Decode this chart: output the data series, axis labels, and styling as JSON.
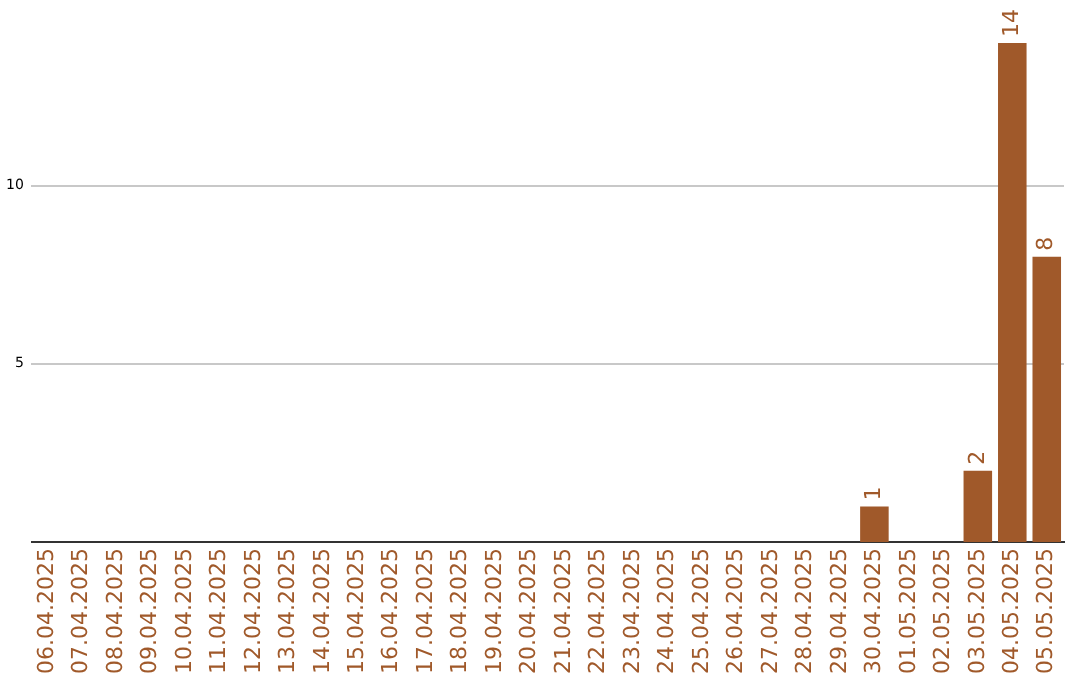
{
  "chart_data": {
    "type": "bar",
    "categories": [
      "06.04.2025",
      "07.04.2025",
      "08.04.2025",
      "09.04.2025",
      "10.04.2025",
      "11.04.2025",
      "12.04.2025",
      "13.04.2025",
      "14.04.2025",
      "15.04.2025",
      "16.04.2025",
      "17.04.2025",
      "18.04.2025",
      "19.04.2025",
      "20.04.2025",
      "21.04.2025",
      "22.04.2025",
      "23.04.2025",
      "24.04.2025",
      "25.04.2025",
      "26.04.2025",
      "27.04.2025",
      "28.04.2025",
      "29.04.2025",
      "30.04.2025",
      "01.05.2025",
      "02.05.2025",
      "03.05.2025",
      "04.05.2025",
      "05.05.2025"
    ],
    "values": [
      0,
      0,
      0,
      0,
      0,
      0,
      0,
      0,
      0,
      0,
      0,
      0,
      0,
      0,
      0,
      0,
      0,
      0,
      0,
      0,
      0,
      0,
      0,
      0,
      1,
      0,
      0,
      2,
      14,
      8
    ],
    "value_labels": [
      null,
      null,
      null,
      null,
      null,
      null,
      null,
      null,
      null,
      null,
      null,
      null,
      null,
      null,
      null,
      null,
      null,
      null,
      null,
      null,
      null,
      null,
      null,
      null,
      "1",
      null,
      null,
      "2",
      "14",
      "8"
    ],
    "color": "#a0592a",
    "ylim": [
      0,
      14.8
    ],
    "yticks": [
      5,
      10
    ],
    "grid": "y",
    "legend": false
  }
}
